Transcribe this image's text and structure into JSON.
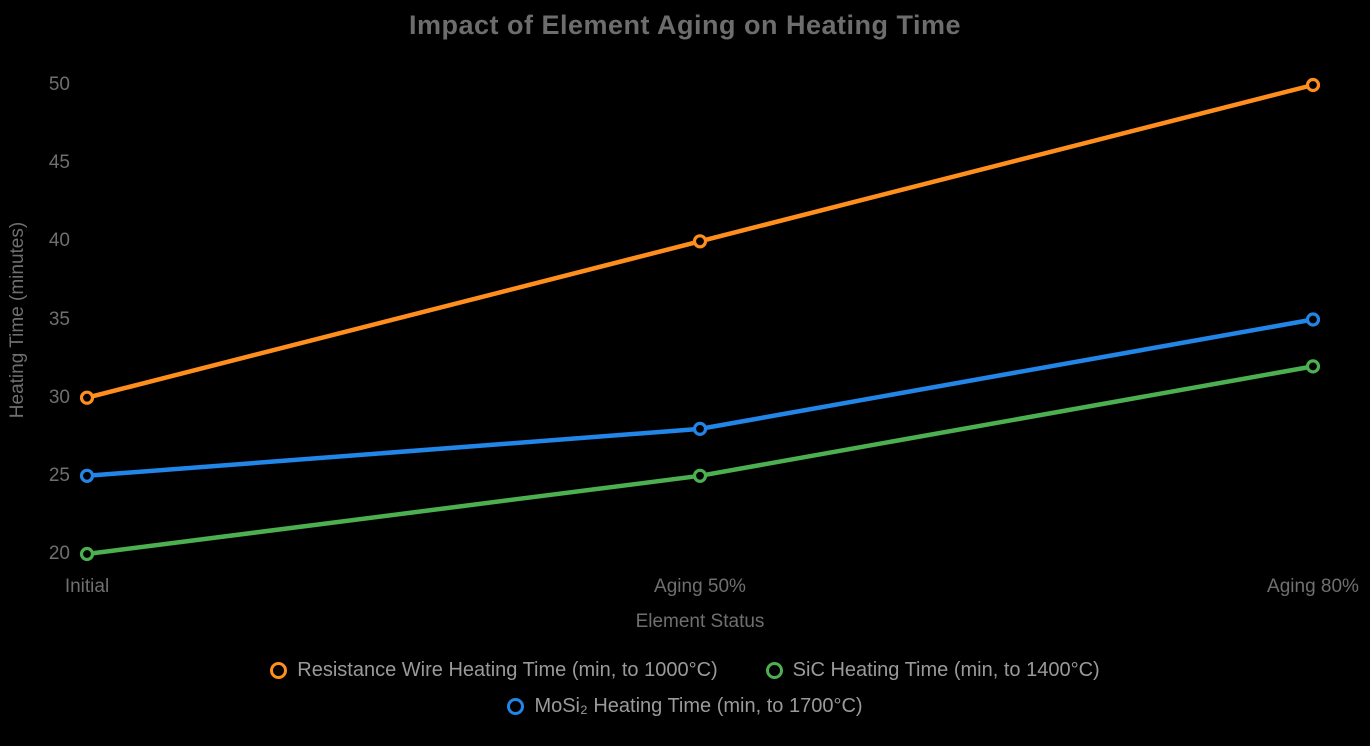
{
  "title": "Impact of Element Aging on Heating Time",
  "chart_data": {
    "type": "line",
    "categories": [
      "Initial",
      "Aging 50%",
      "Aging 80%"
    ],
    "series": [
      {
        "name": "Resistance Wire Heating Time (min, to 1000°C)",
        "color": "#FF8E1C",
        "values": [
          30,
          40,
          50
        ]
      },
      {
        "name": "SiC Heating Time (min, to 1400°C)",
        "color": "#4CAF50",
        "values": [
          20,
          25,
          32
        ]
      },
      {
        "name": "MoSi₂ Heating Time (min, to 1700°C)",
        "color": "#2285E8",
        "values": [
          25,
          28,
          35
        ]
      }
    ],
    "title": "Impact of Element Aging on Heating Time",
    "xlabel": "Element Status",
    "ylabel": "Heating Time (minutes)",
    "ylim": [
      20,
      50
    ],
    "yticks": [
      20,
      25,
      30,
      35,
      40,
      45,
      50
    ],
    "grid": false,
    "legend_position": "bottom",
    "marker": "open-circle",
    "background": "#000000"
  }
}
